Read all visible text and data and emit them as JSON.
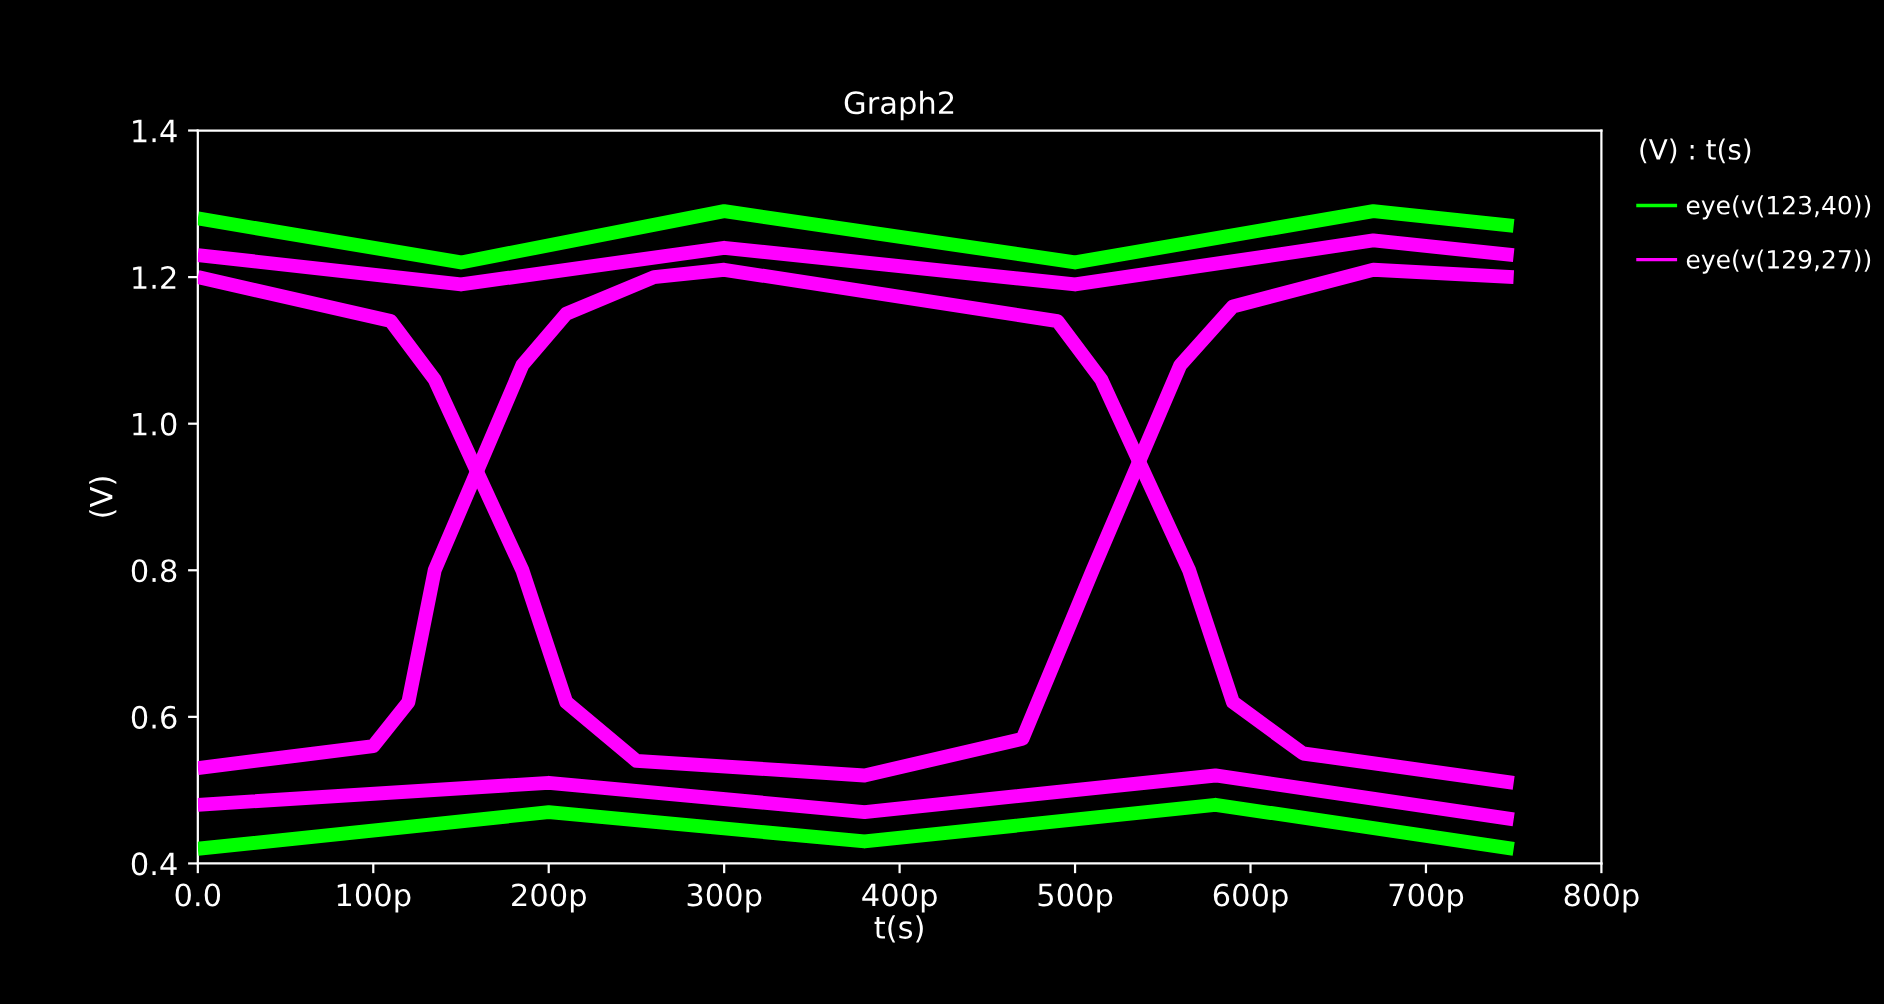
{
  "chart_data": {
    "type": "line",
    "title": "Graph2",
    "xlabel": "t(s)",
    "ylabel": "(V)",
    "legend_title": "(V) : t(s)",
    "legend": "right",
    "grid": false,
    "marker": "none",
    "line_style": "solid",
    "xlim": [
      0,
      800
    ],
    "ylim": [
      0.4,
      1.4
    ],
    "xticks": [
      {
        "value": 0,
        "label": "0.0"
      },
      {
        "value": 100,
        "label": "100p"
      },
      {
        "value": 200,
        "label": "200p"
      },
      {
        "value": 300,
        "label": "300p"
      },
      {
        "value": 400,
        "label": "400p"
      },
      {
        "value": 500,
        "label": "500p"
      },
      {
        "value": 600,
        "label": "600p"
      },
      {
        "value": 700,
        "label": "700p"
      },
      {
        "value": 800,
        "label": "800p"
      }
    ],
    "yticks": [
      0.4,
      0.6,
      0.8,
      {
        "value": 1,
        "label": "1.0"
      },
      1.2,
      1.4
    ],
    "series": [
      {
        "name": "eye(v(123,40))",
        "color": "#00ff00",
        "x": [
          0,
          150,
          300,
          500,
          670,
          750
        ],
        "values": [
          1.28,
          1.22,
          1.29,
          1.22,
          1.29,
          1.27
        ]
      },
      {
        "color": "#00ff00",
        "x": [
          0,
          200,
          380,
          580,
          750
        ],
        "values": [
          0.42,
          0.47,
          0.43,
          0.48,
          0.42
        ]
      },
      {
        "name": "eye(v(129,27))",
        "color": "#ff00ff",
        "x": [
          0,
          150,
          300,
          500,
          670,
          750
        ],
        "values": [
          1.23,
          1.19,
          1.24,
          1.19,
          1.25,
          1.23
        ]
      },
      {
        "color": "#ff00ff",
        "x": [
          0,
          200,
          380,
          580,
          750
        ],
        "values": [
          0.48,
          0.51,
          0.47,
          0.52,
          0.46
        ]
      },
      {
        "color": "#ff00ff",
        "x": [
          0,
          110,
          135,
          185,
          210,
          250,
          380,
          470,
          510,
          560,
          590,
          670,
          750
        ],
        "values": [
          1.2,
          1.14,
          1.06,
          0.8,
          0.62,
          0.54,
          0.52,
          0.57,
          0.8,
          1.08,
          1.16,
          1.21,
          1.2
        ]
      },
      {
        "color": "#ff00ff",
        "x": [
          0,
          100,
          120,
          135,
          185,
          210,
          260,
          300,
          490,
          515,
          565,
          590,
          630,
          750
        ],
        "values": [
          0.53,
          0.56,
          0.62,
          0.8,
          1.08,
          1.15,
          1.2,
          1.21,
          1.14,
          1.06,
          0.8,
          0.62,
          0.55,
          0.51
        ]
      }
    ]
  }
}
